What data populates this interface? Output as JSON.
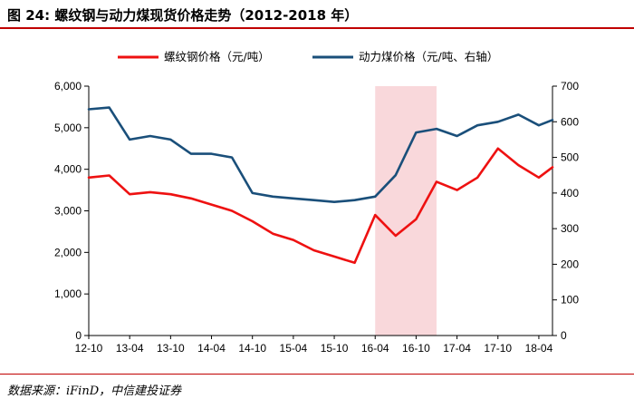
{
  "header": {
    "title": "图 24: 螺纹钢与动力煤现货价格走势（2012-2018 年）"
  },
  "footer": {
    "source": "数据来源：iFinD，中信建投证券"
  },
  "colors": {
    "rebar": "#ee1111",
    "coal": "#1a4f7a",
    "shade": "#f9d8db",
    "accent_rule": "#c00000"
  },
  "chart_data": {
    "type": "line",
    "x": [
      "2012-10",
      "2013-01",
      "2013-04",
      "2013-07",
      "2013-10",
      "2014-01",
      "2014-04",
      "2014-07",
      "2014-10",
      "2015-01",
      "2015-04",
      "2015-07",
      "2015-10",
      "2016-01",
      "2016-04",
      "2016-07",
      "2016-10",
      "2017-01",
      "2017-04",
      "2017-07",
      "2017-10",
      "2018-01",
      "2018-04",
      "2018-06"
    ],
    "x_tick_labels": [
      "12-10",
      "13-04",
      "13-10",
      "14-04",
      "14-10",
      "15-04",
      "15-10",
      "16-04",
      "16-10",
      "17-04",
      "17-10",
      "18-04"
    ],
    "series": [
      {
        "name": "螺纹钢价格（元/吨）",
        "axis": "left",
        "values": [
          3800,
          3850,
          3400,
          3450,
          3400,
          3300,
          3150,
          3000,
          2750,
          2450,
          2300,
          2050,
          1900,
          1750,
          2900,
          2400,
          2800,
          3700,
          3500,
          3800,
          4500,
          4100,
          3800,
          4050
        ]
      },
      {
        "name": "动力煤价格（元/吨、右轴）",
        "axis": "right",
        "values": [
          635,
          640,
          550,
          560,
          550,
          510,
          510,
          500,
          400,
          390,
          385,
          380,
          375,
          380,
          390,
          450,
          570,
          580,
          560,
          590,
          600,
          620,
          590,
          605
        ]
      }
    ],
    "left_axis": {
      "ylim": [
        0,
        6000
      ],
      "ticks": [
        "0",
        "1,000",
        "2,000",
        "3,000",
        "4,000",
        "5,000",
        "6,000"
      ]
    },
    "right_axis": {
      "ylim": [
        0,
        700
      ],
      "ticks": [
        "0",
        "100",
        "200",
        "300",
        "400",
        "500",
        "600",
        "700"
      ]
    },
    "shaded_range": {
      "from": "2016-04",
      "to": "2017-01"
    },
    "legend_position": "top",
    "grid": false
  }
}
